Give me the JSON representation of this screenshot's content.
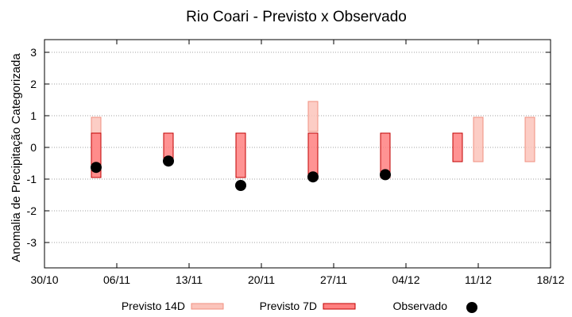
{
  "chart_data": {
    "type": "bar",
    "title": "Rio Coari - Previsto x Observado",
    "ylabel": "Anomalia de Precipitação Categorizada",
    "xlabel": "",
    "ylim": [
      -3.8,
      3.4
    ],
    "yticks": [
      -3,
      -2,
      -1,
      0,
      1,
      2,
      3
    ],
    "x_tick_labels": [
      "30/10",
      "06/11",
      "13/11",
      "20/11",
      "27/11",
      "04/12",
      "11/12",
      "18/12"
    ],
    "x_tick_days": [
      0,
      7,
      14,
      21,
      28,
      35,
      42,
      49
    ],
    "grid": "horizontal dotted",
    "legend_position": "bottom",
    "series": [
      {
        "name": "Previsto 14D",
        "kind": "range",
        "color": "#FBC4BB",
        "edge_color": "#F09080",
        "x_days": [
          5,
          26,
          42,
          47
        ],
        "low": [
          -0.95,
          0.5,
          -0.45,
          -0.45
        ],
        "high": [
          0.95,
          1.45,
          0.95,
          0.95
        ]
      },
      {
        "name": "Previsto 7D",
        "kind": "range",
        "color": "#FF8080",
        "edge_color": "#C00000",
        "x_days": [
          5,
          12,
          19,
          26,
          33,
          40
        ],
        "low": [
          -0.95,
          -0.45,
          -0.95,
          -0.95,
          -0.95,
          -0.45
        ],
        "high": [
          0.45,
          0.45,
          0.45,
          0.45,
          0.45,
          0.45
        ]
      },
      {
        "name": "Observado",
        "kind": "point",
        "color": "#000000",
        "x_days": [
          5,
          12,
          19,
          26,
          33
        ],
        "values": [
          -0.63,
          -0.43,
          -1.2,
          -0.93,
          -0.86
        ]
      }
    ]
  }
}
